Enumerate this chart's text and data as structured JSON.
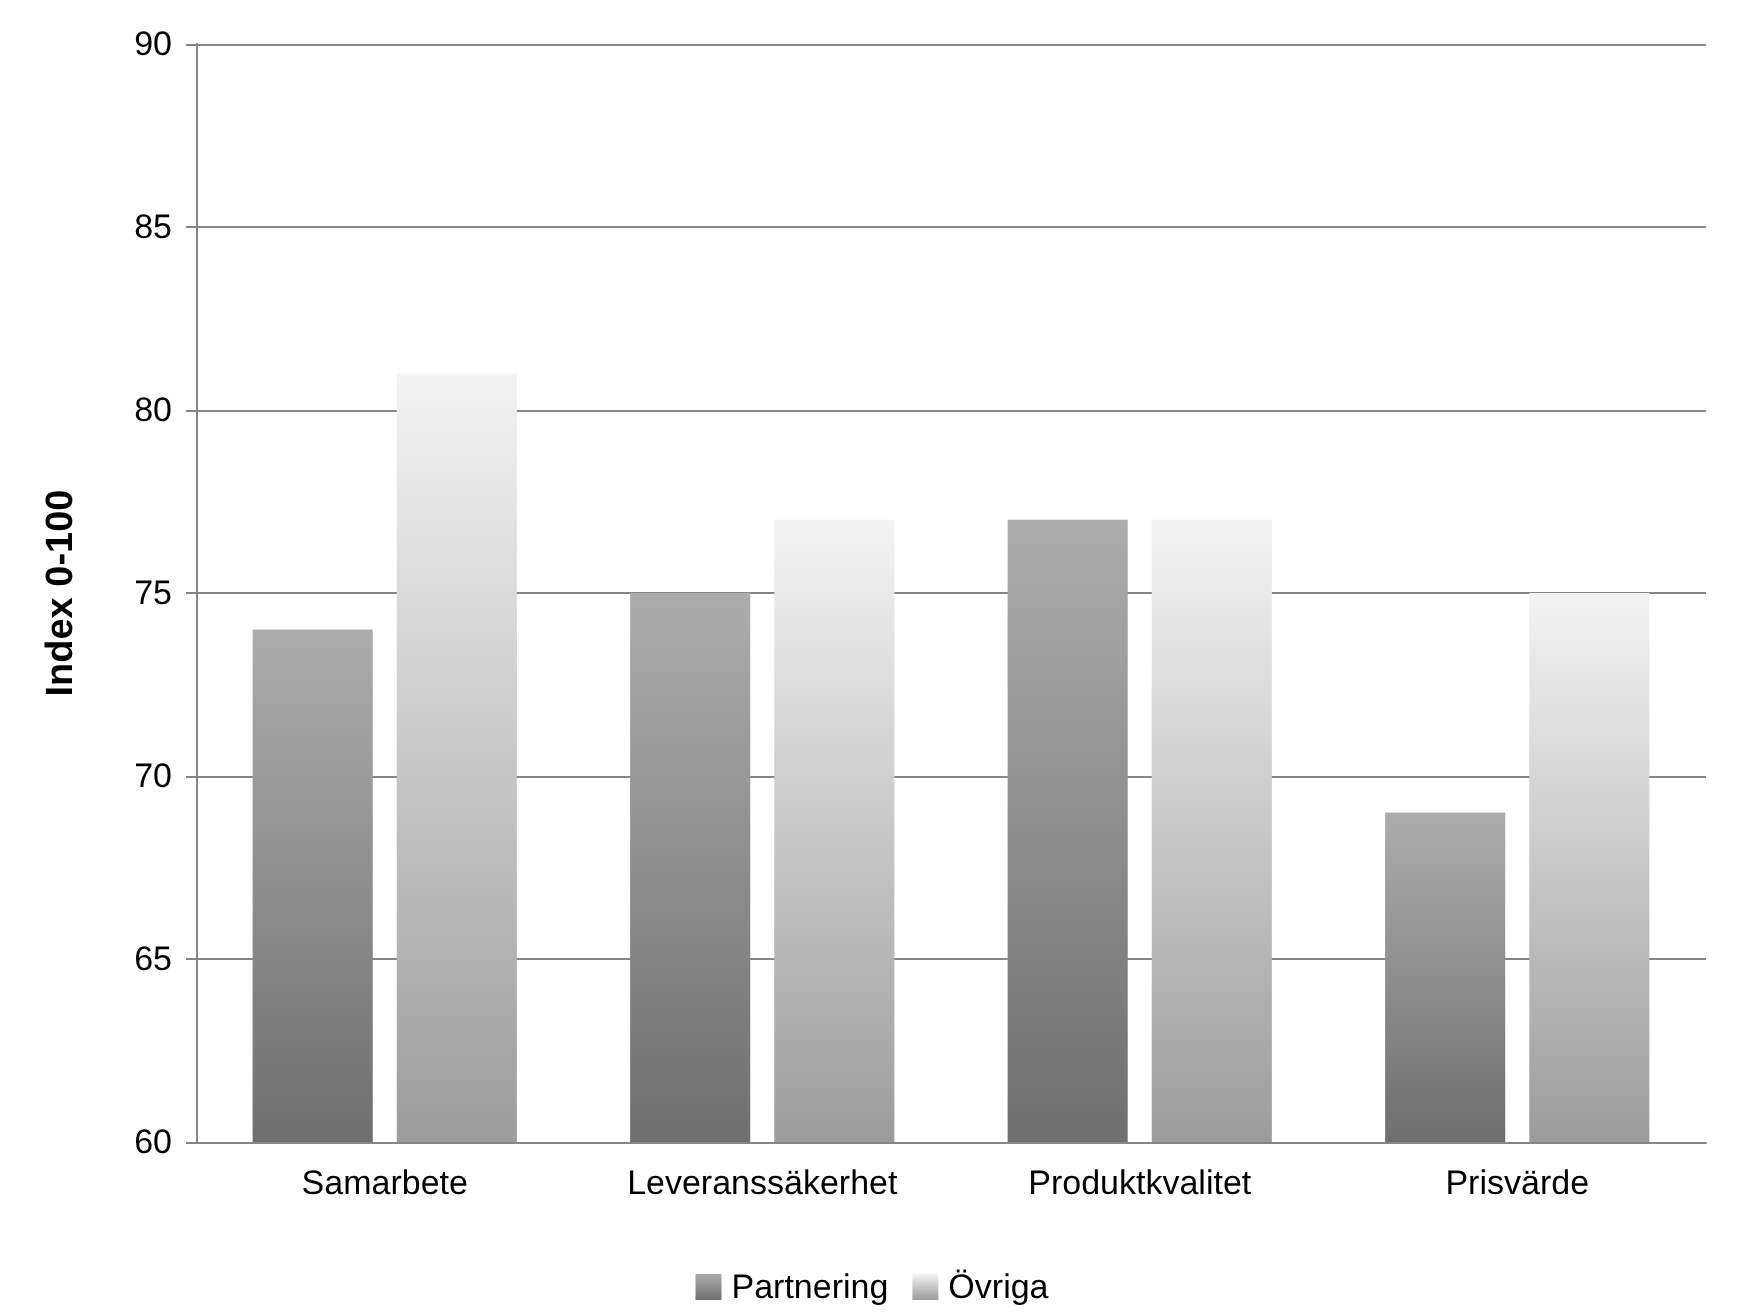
{
  "chart_data": {
    "type": "bar",
    "ylabel": "Index 0-100",
    "categories": [
      "Samarbete",
      "Leveranssäkerhet",
      "Produktkvalitet",
      "Prisvärde"
    ],
    "series": [
      {
        "name": "Partnering",
        "color": "#9a9a9a",
        "values": [
          74,
          75,
          77,
          69
        ]
      },
      {
        "name": "Övriga",
        "color": "#d9d9d9",
        "values": [
          81,
          77,
          77,
          75
        ]
      }
    ],
    "ylim": [
      60,
      90
    ],
    "yticks": [
      60,
      65,
      70,
      75,
      80,
      85,
      90
    ],
    "grid": "y",
    "legend": "bottom"
  }
}
